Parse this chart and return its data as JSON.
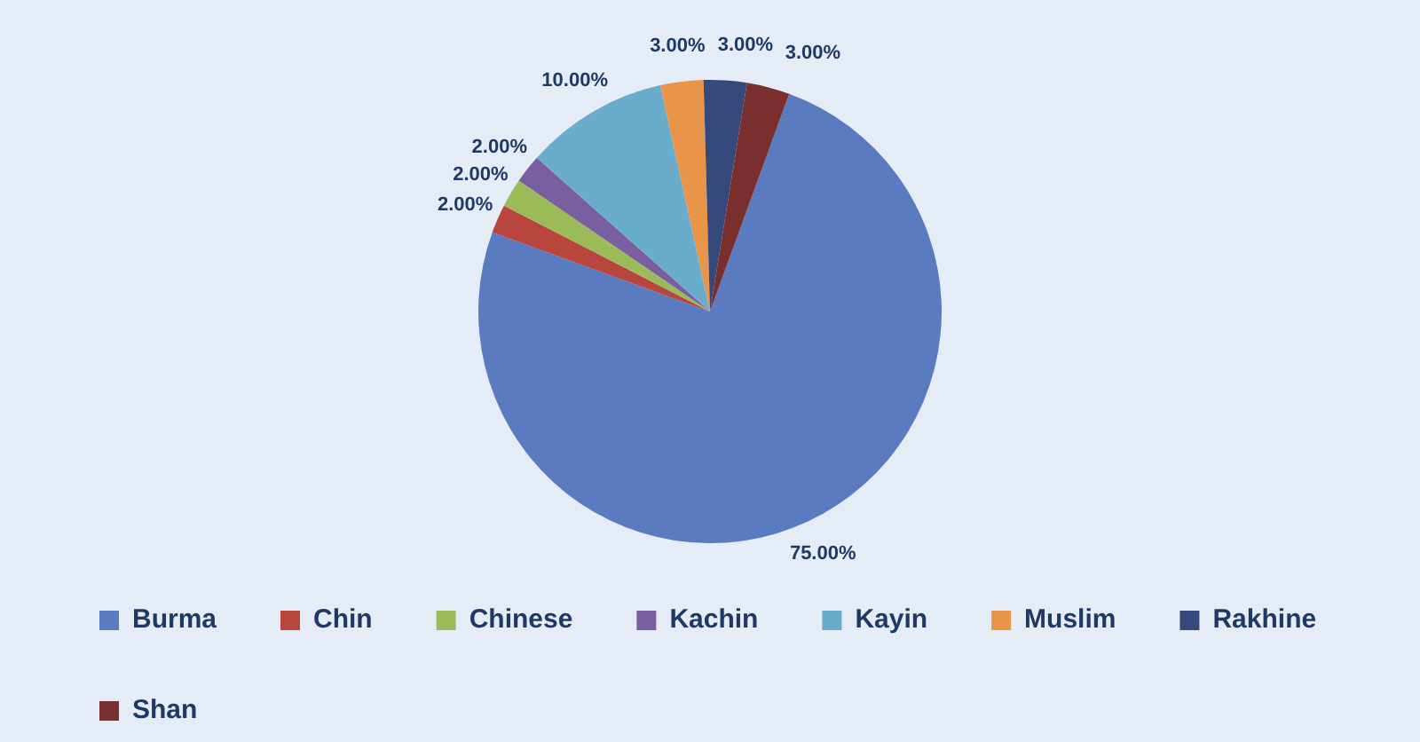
{
  "chart_data": {
    "type": "pie",
    "categories": [
      "Burma",
      "Chin",
      "Chinese",
      "Kachin",
      "Kayin",
      "Muslim",
      "Rakhine",
      "Shan"
    ],
    "values": [
      75,
      2,
      2,
      2,
      10,
      3,
      3,
      3
    ],
    "colors": [
      "#5a7bbf",
      "#b9453f",
      "#9bbb59",
      "#7a5fa0",
      "#6aaccb",
      "#e8954a",
      "#35497a",
      "#7a2f2f"
    ],
    "value_labels": [
      "75.00%",
      "2.00%",
      "2.00%",
      "2.00%",
      "10.00%",
      "3.00%",
      "3.00%",
      "3.00%"
    ],
    "legend": "bottom"
  }
}
